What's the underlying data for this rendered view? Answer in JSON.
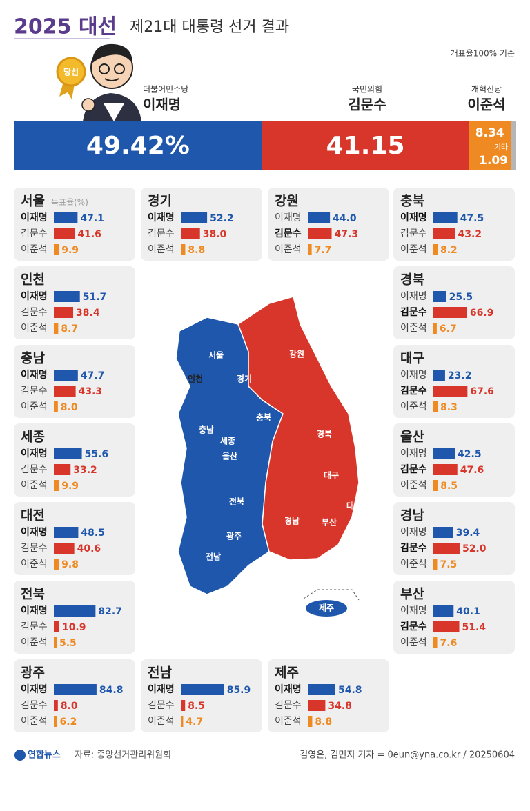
{
  "header": {
    "title_year": "2025 대선",
    "title": "제21대 대통령 선거 결과",
    "note": "개표율100% 기준"
  },
  "winner_badge": "당선",
  "candidates": [
    {
      "party": "더불어민주당",
      "name": "이재명",
      "value": 49.42,
      "value_label": "49.42%",
      "color": "#1f57ad"
    },
    {
      "party": "국민의힘",
      "name": "김문수",
      "value": 41.15,
      "color": "#d8362a"
    },
    {
      "party": "개혁신당",
      "name": "이준석",
      "value": 8.34,
      "color": "#ef8a22"
    }
  ],
  "other": {
    "label": "기타",
    "value": 1.09,
    "color": "#b5b5b5"
  },
  "region_unit": "득표율(%)",
  "regions": [
    {
      "name": "서울",
      "values": [
        47.1,
        41.6,
        9.9
      ],
      "value_labels": [
        "47.1",
        "41.6",
        "9.9"
      ]
    },
    {
      "name": "경기",
      "values": [
        52.2,
        38.0,
        8.8
      ],
      "value_labels": [
        "52.2",
        "38.0",
        "8.8"
      ]
    },
    {
      "name": "강원",
      "values": [
        44.0,
        47.3,
        7.7
      ],
      "value_labels": [
        "44.0",
        "47.3",
        "7.7"
      ]
    },
    {
      "name": "충북",
      "values": [
        47.5,
        43.2,
        8.2
      ],
      "value_labels": [
        "47.5",
        "43.2",
        "8.2"
      ]
    },
    {
      "name": "인천",
      "values": [
        51.7,
        38.4,
        8.7
      ],
      "value_labels": [
        "51.7",
        "38.4",
        "8.7"
      ]
    },
    {
      "name": "경북",
      "values": [
        25.5,
        66.9,
        6.7
      ],
      "value_labels": [
        "25.5",
        "66.9",
        "6.7"
      ]
    },
    {
      "name": "충남",
      "values": [
        47.7,
        43.3,
        8.0
      ],
      "value_labels": [
        "47.7",
        "43.3",
        "8.0"
      ]
    },
    {
      "name": "대구",
      "values": [
        23.2,
        67.6,
        8.3
      ],
      "value_labels": [
        "23.2",
        "67.6",
        "8.3"
      ]
    },
    {
      "name": "세종",
      "values": [
        55.6,
        33.2,
        9.9
      ],
      "value_labels": [
        "55.6",
        "33.2",
        "9.9"
      ]
    },
    {
      "name": "울산",
      "values": [
        42.5,
        47.6,
        8.5
      ],
      "value_labels": [
        "42.5",
        "47.6",
        "8.5"
      ]
    },
    {
      "name": "대전",
      "values": [
        48.5,
        40.6,
        9.8
      ],
      "value_labels": [
        "48.5",
        "40.6",
        "9.8"
      ]
    },
    {
      "name": "경남",
      "values": [
        39.4,
        52.0,
        7.5
      ],
      "value_labels": [
        "39.4",
        "52.0",
        "7.5"
      ]
    },
    {
      "name": "전북",
      "values": [
        82.7,
        10.9,
        5.5
      ],
      "value_labels": [
        "82.7",
        "10.9",
        "5.5"
      ]
    },
    {
      "name": "부산",
      "values": [
        40.1,
        51.4,
        7.6
      ],
      "value_labels": [
        "40.1",
        "51.4",
        "7.6"
      ]
    },
    {
      "name": "광주",
      "values": [
        84.8,
        8.0,
        6.2
      ],
      "value_labels": [
        "84.8",
        "8.0",
        "6.2"
      ]
    },
    {
      "name": "전남",
      "values": [
        85.9,
        8.5,
        4.7
      ],
      "value_labels": [
        "85.9",
        "8.5",
        "4.7"
      ]
    },
    {
      "name": "제주",
      "values": [
        54.8,
        34.8,
        8.8
      ],
      "value_labels": [
        "54.8",
        "34.8",
        "8.8"
      ]
    }
  ],
  "footer": {
    "logo": "연합뉴스",
    "source": "자료: 중앙선거관리위원회",
    "credit": "김영은, 김민지 기자 = 0eun@yna.co.kr / 20250604"
  }
}
